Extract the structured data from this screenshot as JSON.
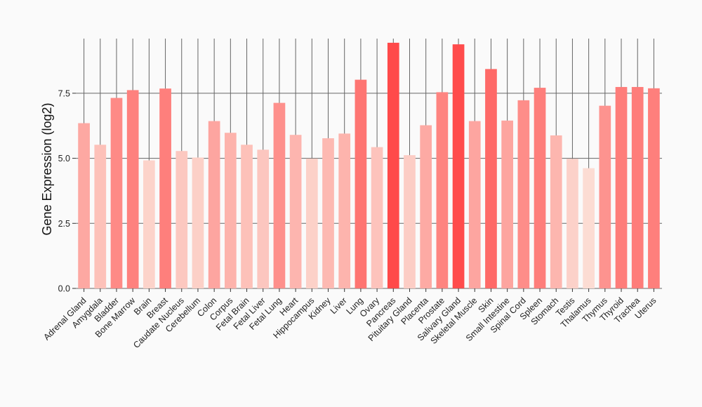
{
  "chart_data": {
    "type": "bar",
    "title": "",
    "xlabel": "",
    "ylabel": "Gene Expression (log2)",
    "ylim": [
      0,
      9.6
    ],
    "yticks": [
      0.0,
      2.5,
      5.0,
      7.5
    ],
    "ytick_labels": [
      "0.0",
      "2.5",
      "5.0",
      "7.5"
    ],
    "grid": true,
    "colors": {
      "min": "#fcdcd3",
      "max": "#ff4a4a",
      "grid": "#666666",
      "background": "#fafafa"
    },
    "categories": [
      "Adrenal Gland",
      "Amygdala",
      "Bladder",
      "Bone Marrow",
      "Brain",
      "Breast",
      "Caudate Nucleus",
      "Cerebellum",
      "Colon",
      "Corpus",
      "Fetal Brain",
      "Fetal Liver",
      "Fetal Lung",
      "Heart",
      "Hippocampus",
      "Kidney",
      "Liver",
      "Lung",
      "Ovary",
      "Pancreas",
      "Pituitary Gland",
      "Placenta",
      "Prostate",
      "Salivary Gland",
      "Skeletal Muscle",
      "Skin",
      "Small Intestine",
      "Spinal Cord",
      "Spleen",
      "Stomach",
      "Testis",
      "Thalamus",
      "Thymus",
      "Thyroid",
      "Trachea",
      "Uterus"
    ],
    "values": [
      6.35,
      5.52,
      7.32,
      7.62,
      4.92,
      7.68,
      5.28,
      5.03,
      6.43,
      5.98,
      5.52,
      5.33,
      7.13,
      5.9,
      4.99,
      5.77,
      5.95,
      8.02,
      5.43,
      9.44,
      5.12,
      6.27,
      7.54,
      9.38,
      6.43,
      8.43,
      6.45,
      7.23,
      7.71,
      5.88,
      4.98,
      4.62,
      7.02,
      7.74,
      7.74,
      7.69
    ]
  }
}
